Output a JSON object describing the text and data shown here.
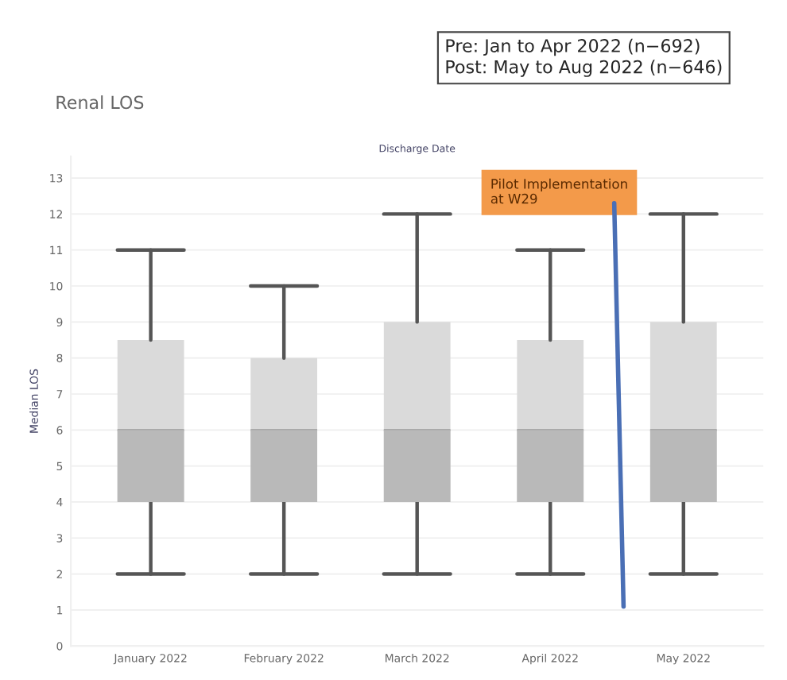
{
  "chart_data": {
    "type": "box",
    "title": "Renal LOS",
    "xlabel": "Discharge Date",
    "ylabel": "Median LOS",
    "categories": [
      "January 2022",
      "February 2022",
      "March 2022",
      "April 2022",
      "May 2022"
    ],
    "boxes": [
      {
        "low": 2,
        "q1": 4,
        "median": 6,
        "q3": 8.5,
        "high": 11
      },
      {
        "low": 2,
        "q1": 4,
        "median": 6,
        "q3": 8,
        "high": 10
      },
      {
        "low": 2,
        "q1": 4,
        "median": 6,
        "q3": 9,
        "high": 12
      },
      {
        "low": 2,
        "q1": 4,
        "median": 6,
        "q3": 8.5,
        "high": 11
      },
      {
        "low": 2,
        "q1": 4,
        "median": 6,
        "q3": 9,
        "high": 12
      }
    ],
    "colors": [
      "#dadada",
      "#dadada",
      "#dadada",
      "#dadada",
      "#dadada"
    ],
    "ylim": [
      0,
      13.6
    ],
    "yticks": [
      0,
      1,
      2,
      3,
      4,
      5,
      6,
      7,
      8,
      9,
      10,
      11,
      12,
      13
    ],
    "grid": "y",
    "annotations": [
      "Pre: Jan to Apr 2022 (n−692)\nPost: May to Aug 2022 (n−646)",
      "Pilot Implementation\nat W29"
    ]
  }
}
